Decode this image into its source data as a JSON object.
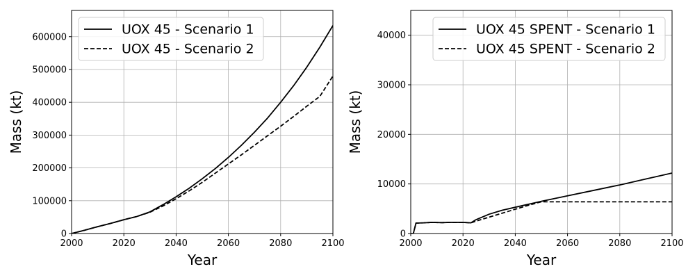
{
  "chart_data": [
    {
      "type": "line",
      "title": "",
      "xlabel": "Year",
      "ylabel": "Mass (kt)",
      "xlim": [
        2000,
        2100
      ],
      "ylim": [
        0,
        680000
      ],
      "xticks": [
        2000,
        2020,
        2040,
        2060,
        2080,
        2100
      ],
      "yticks": [
        0,
        100000,
        200000,
        300000,
        400000,
        500000,
        600000
      ],
      "grid": true,
      "legend_position": "top-left",
      "series": [
        {
          "name": "UOX 45 - Scenario 1",
          "style": "solid",
          "color": "#000000",
          "x": [
            2000,
            2005,
            2010,
            2015,
            2020,
            2025,
            2030,
            2035,
            2040,
            2045,
            2050,
            2055,
            2060,
            2065,
            2070,
            2075,
            2080,
            2085,
            2090,
            2095,
            2100
          ],
          "y": [
            0,
            10000,
            21000,
            31000,
            42000,
            52000,
            66000,
            88000,
            112000,
            138000,
            167000,
            198000,
            232000,
            269000,
            309000,
            352000,
            400000,
            451000,
            507000,
            568000,
            634000
          ]
        },
        {
          "name": "UOX 45 - Scenario 2",
          "style": "dashed",
          "color": "#000000",
          "x": [
            2000,
            2005,
            2010,
            2015,
            2020,
            2025,
            2030,
            2035,
            2040,
            2045,
            2050,
            2055,
            2060,
            2065,
            2070,
            2075,
            2080,
            2085,
            2090,
            2095,
            2100
          ],
          "y": [
            0,
            10000,
            21000,
            31000,
            42000,
            52000,
            65000,
            84000,
            106000,
            130000,
            156000,
            184000,
            212000,
            240000,
            269000,
            298000,
            327000,
            357000,
            388000,
            418000,
            480000
          ]
        }
      ]
    },
    {
      "type": "line",
      "title": "",
      "xlabel": "Year",
      "ylabel": "Mass (kt)",
      "xlim": [
        2000,
        2100
      ],
      "ylim": [
        0,
        45000
      ],
      "xticks": [
        2000,
        2020,
        2040,
        2060,
        2080,
        2100
      ],
      "yticks": [
        0,
        10000,
        20000,
        30000,
        40000
      ],
      "grid": true,
      "legend_position": "top-right",
      "series": [
        {
          "name": "UOX 45 SPENT - Scenario 1",
          "style": "solid",
          "color": "#000000",
          "x": [
            2000,
            2001,
            2002,
            2005,
            2008,
            2012,
            2015,
            2020,
            2023,
            2025,
            2030,
            2035,
            2040,
            2045,
            2050,
            2060,
            2070,
            2080,
            2090,
            2100
          ],
          "y": [
            0,
            0,
            2100,
            2150,
            2250,
            2200,
            2250,
            2250,
            2150,
            2800,
            3900,
            4700,
            5300,
            5900,
            6500,
            7600,
            8700,
            9800,
            11000,
            12200
          ]
        },
        {
          "name": "UOX 45 SPENT - Scenario 2",
          "style": "dashed",
          "color": "#000000",
          "x": [
            2000,
            2001,
            2002,
            2005,
            2008,
            2012,
            2015,
            2020,
            2023,
            2025,
            2030,
            2035,
            2040,
            2045,
            2050,
            2060,
            2070,
            2080,
            2090,
            2100
          ],
          "y": [
            0,
            0,
            2100,
            2150,
            2250,
            2200,
            2250,
            2250,
            2150,
            2500,
            3300,
            4100,
            4900,
            5700,
            6400,
            6400,
            6400,
            6400,
            6400,
            6400
          ]
        }
      ]
    }
  ]
}
